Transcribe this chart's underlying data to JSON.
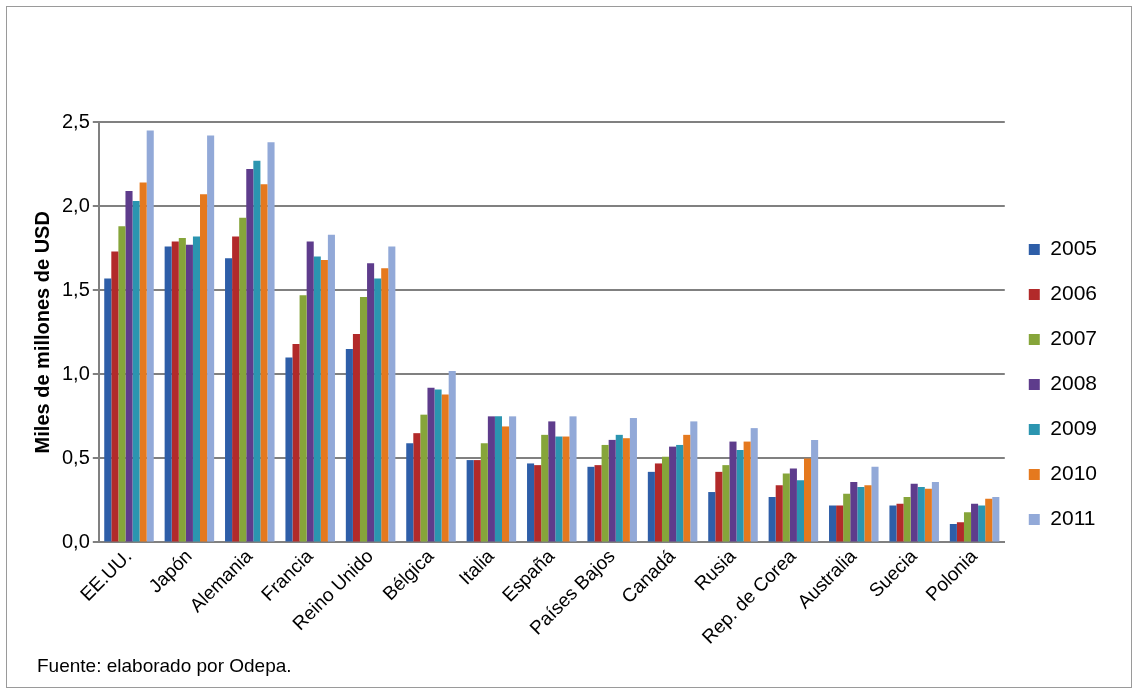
{
  "chart_data": {
    "type": "bar",
    "ylabel": "Miles de millones de USD",
    "categories": [
      "EE.UU.",
      "Japón",
      "Alemania",
      "Francia",
      "Reino Unido",
      "Bélgica",
      "Italia",
      "España",
      "Países Bajos",
      "Canadá",
      "Rusia",
      "Rep. de Corea",
      "Australia",
      "Suecia",
      "Polonia"
    ],
    "series": [
      {
        "name": "2005",
        "color": "#2e5ea8",
        "values": [
          1.57,
          1.76,
          1.69,
          1.1,
          1.15,
          0.59,
          0.49,
          0.47,
          0.45,
          0.42,
          0.3,
          0.27,
          0.22,
          0.22,
          0.11
        ]
      },
      {
        "name": "2006",
        "color": "#b22a2a",
        "values": [
          1.73,
          1.79,
          1.82,
          1.18,
          1.24,
          0.65,
          0.49,
          0.46,
          0.46,
          0.47,
          0.42,
          0.34,
          0.22,
          0.23,
          0.12
        ]
      },
      {
        "name": "2007",
        "color": "#86a53a",
        "values": [
          1.88,
          1.81,
          1.93,
          1.47,
          1.46,
          0.76,
          0.59,
          0.64,
          0.58,
          0.51,
          0.46,
          0.41,
          0.29,
          0.27,
          0.18
        ]
      },
      {
        "name": "2008",
        "color": "#5e3c8c",
        "values": [
          2.09,
          1.77,
          2.22,
          1.79,
          1.66,
          0.92,
          0.75,
          0.72,
          0.61,
          0.57,
          0.6,
          0.44,
          0.36,
          0.35,
          0.23
        ]
      },
      {
        "name": "2009",
        "color": "#2b95b0",
        "values": [
          2.03,
          1.82,
          2.27,
          1.7,
          1.57,
          0.91,
          0.75,
          0.63,
          0.64,
          0.58,
          0.55,
          0.37,
          0.33,
          0.33,
          0.22
        ]
      },
      {
        "name": "2010",
        "color": "#e5791e",
        "values": [
          2.14,
          2.07,
          2.13,
          1.68,
          1.63,
          0.88,
          0.69,
          0.63,
          0.62,
          0.64,
          0.6,
          0.5,
          0.34,
          0.32,
          0.26
        ]
      },
      {
        "name": "2011",
        "color": "#92a9d8",
        "values": [
          2.45,
          2.42,
          2.38,
          1.83,
          1.76,
          1.02,
          0.75,
          0.75,
          0.74,
          0.72,
          0.68,
          0.61,
          0.45,
          0.36,
          0.27
        ]
      }
    ],
    "ylim": [
      0,
      2.5
    ],
    "yticks": [
      {
        "value": 0,
        "label": "0,0"
      },
      {
        "value": 0.5,
        "label": "0,5"
      },
      {
        "value": 1,
        "label": "1,0"
      },
      {
        "value": 1.5,
        "label": "1,5"
      },
      {
        "value": 2,
        "label": "2,0"
      },
      {
        "value": 2.5,
        "label": "2,5"
      }
    ],
    "grid": "y",
    "legend": "right",
    "annotations": [
      "Fuente: elaborado por Odepa."
    ]
  }
}
